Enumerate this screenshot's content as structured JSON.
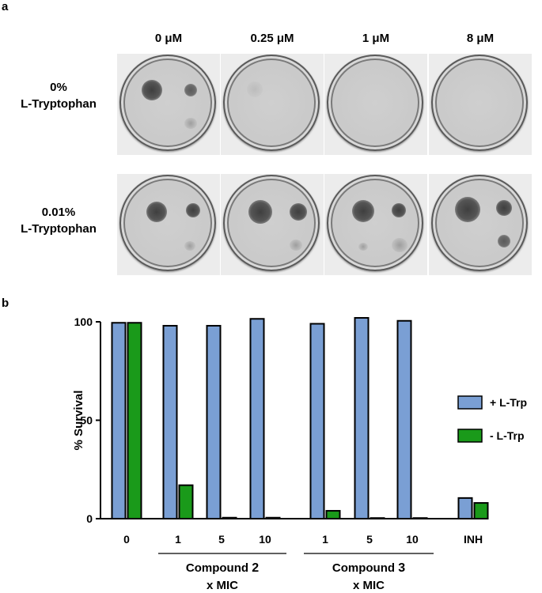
{
  "panels": {
    "a": "a",
    "b": "b"
  },
  "plates": {
    "columns": [
      "0 μM",
      "0.25 μM",
      "1 μM",
      "8 μM"
    ],
    "rows": [
      {
        "label_line1": "0%",
        "label_line2": "L-Tryptophan"
      },
      {
        "label_line1": "0.01%",
        "label_line2": "L-Tryptophan"
      }
    ]
  },
  "chart_data": {
    "type": "bar",
    "ylabel": "% Survival",
    "ylim": [
      0,
      100
    ],
    "yticks": [
      0,
      50,
      100
    ],
    "categories": [
      "0",
      "1",
      "5",
      "10",
      "1",
      "5",
      "10",
      "INH"
    ],
    "groups": [
      {
        "label": "Compound 2",
        "label_main": "Compound ",
        "label_bold": "2",
        "label_line2": "x MIC",
        "categories": [
          "1",
          "5",
          "10"
        ]
      },
      {
        "label": "Compound 3",
        "label_main": "Compound ",
        "label_bold": "3",
        "label_line2": "x MIC",
        "categories": [
          "1",
          "5",
          "10"
        ]
      }
    ],
    "series": [
      {
        "name": "+ L-Trp",
        "color": "#7a9fd4",
        "values": [
          99.5,
          98,
          98,
          101.5,
          99,
          102,
          100.5,
          10.5
        ]
      },
      {
        "name": "- L-Trp",
        "color": "#1a9a1a",
        "values": [
          99.5,
          17,
          0.5,
          0.5,
          4,
          0.3,
          0.2,
          8
        ]
      }
    ],
    "legend_position": "right"
  }
}
